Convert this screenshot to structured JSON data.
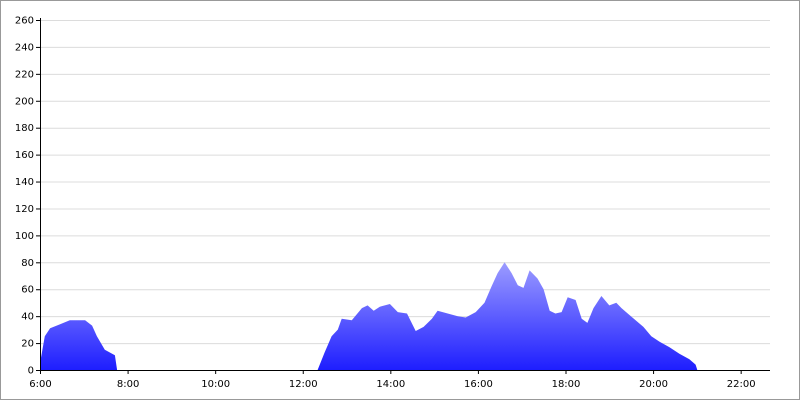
{
  "chart_data": {
    "type": "area",
    "x": [
      6.0,
      6.11,
      6.23,
      6.46,
      6.68,
      7.03,
      7.19,
      7.3,
      7.48,
      7.71,
      7.76,
      12.34,
      12.5,
      12.66,
      12.8,
      12.89,
      13.12,
      13.35,
      13.48,
      13.62,
      13.76,
      13.99,
      14.17,
      14.38,
      14.58,
      14.76,
      14.95,
      15.08,
      15.31,
      15.54,
      15.72,
      15.95,
      16.15,
      16.31,
      16.45,
      16.61,
      16.77,
      16.91,
      17.04,
      17.18,
      17.36,
      17.5,
      17.64,
      17.77,
      17.91,
      18.05,
      18.23,
      18.37,
      18.5,
      18.64,
      18.82,
      19.0,
      19.16,
      19.28,
      19.42,
      19.6,
      19.78,
      19.96,
      20.15,
      20.37,
      20.6,
      20.83,
      20.97,
      21.01
    ],
    "values": [
      5,
      25,
      31,
      34,
      37,
      37,
      33,
      25,
      15,
      11,
      0,
      0,
      13,
      25,
      30,
      38,
      37,
      46,
      48,
      44,
      47,
      49,
      43,
      42,
      29,
      32,
      38,
      44,
      42,
      40,
      39,
      43,
      50,
      62,
      72,
      80,
      72,
      63,
      61,
      74,
      68,
      60,
      44,
      42,
      43,
      54,
      52,
      38,
      35,
      46,
      55,
      48,
      50,
      46,
      42,
      37,
      32,
      25,
      21,
      17,
      12,
      8,
      4,
      0
    ],
    "color_top": "#9c9cff",
    "color_bottom": "#1e1eff",
    "xlim": [
      6,
      22.67
    ],
    "xticks": [
      {
        "value": 6,
        "label": "6:00"
      },
      {
        "value": 8,
        "label": "8:00"
      },
      {
        "value": 10,
        "label": "10:00"
      },
      {
        "value": 12,
        "label": "12:00"
      },
      {
        "value": 14,
        "label": "14:00"
      },
      {
        "value": 16,
        "label": "16:00"
      },
      {
        "value": 18,
        "label": "18:00"
      },
      {
        "value": 20,
        "label": "20:00"
      },
      {
        "value": 22,
        "label": "22:00"
      }
    ],
    "ylim": [
      0,
      260
    ],
    "yticks": [
      0,
      20,
      40,
      60,
      80,
      100,
      120,
      140,
      160,
      180,
      200,
      220,
      240,
      260
    ],
    "grid": true
  }
}
